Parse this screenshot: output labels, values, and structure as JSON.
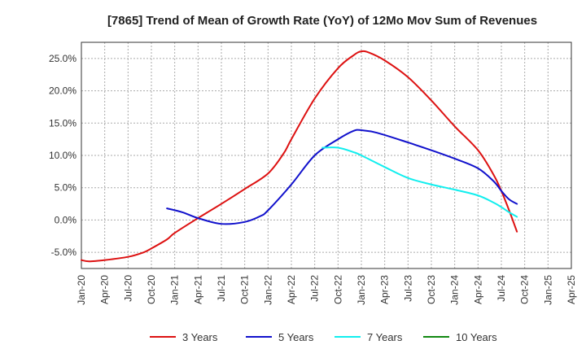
{
  "chart_data": {
    "type": "line",
    "title": "[7865]  Trend of Mean of Growth Rate (YoY) of 12Mo Mov Sum of Revenues",
    "xlabel": "",
    "ylabel": "",
    "x_start": 2020.0,
    "x_end": 2025.25,
    "ylim": [
      -7.5,
      27.5
    ],
    "yticks": [
      -5,
      0,
      5,
      10,
      15,
      20,
      25
    ],
    "ytick_labels": [
      "-5.0%",
      "0.0%",
      "5.0%",
      "10.0%",
      "15.0%",
      "20.0%",
      "25.0%"
    ],
    "xticks": [
      2020.0,
      2020.25,
      2020.5,
      2020.75,
      2021.0,
      2021.25,
      2021.5,
      2021.75,
      2022.0,
      2022.25,
      2022.5,
      2022.75,
      2023.0,
      2023.25,
      2023.5,
      2023.75,
      2024.0,
      2024.25,
      2024.5,
      2024.75,
      2025.0,
      2025.25
    ],
    "xtick_labels": [
      "Jan-20",
      "Apr-20",
      "Jul-20",
      "Oct-20",
      "Jan-21",
      "Apr-21",
      "Jul-21",
      "Oct-21",
      "Jan-22",
      "Apr-22",
      "Jul-22",
      "Oct-22",
      "Jan-23",
      "Apr-23",
      "Jul-23",
      "Oct-23",
      "Jan-24",
      "Apr-24",
      "Jul-24",
      "Oct-24",
      "Jan-25",
      "Apr-25"
    ],
    "grid": true,
    "legend_position": "bottom",
    "series": [
      {
        "name": "3 Years",
        "color": "#dd1111",
        "points": [
          [
            2020.0,
            -6.2
          ],
          [
            2020.083,
            -6.4
          ],
          [
            2020.25,
            -6.2
          ],
          [
            2020.5,
            -5.7
          ],
          [
            2020.667,
            -5.0
          ],
          [
            2020.75,
            -4.4
          ],
          [
            2020.917,
            -3.0
          ],
          [
            2021.0,
            -2.0
          ],
          [
            2021.25,
            0.3
          ],
          [
            2021.5,
            2.5
          ],
          [
            2021.75,
            4.8
          ],
          [
            2022.0,
            7.2
          ],
          [
            2022.167,
            10.3
          ],
          [
            2022.25,
            12.5
          ],
          [
            2022.5,
            18.8
          ],
          [
            2022.75,
            23.5
          ],
          [
            2022.917,
            25.5
          ],
          [
            2023.0,
            26.1
          ],
          [
            2023.083,
            25.9
          ],
          [
            2023.25,
            24.7
          ],
          [
            2023.5,
            22.1
          ],
          [
            2023.75,
            18.5
          ],
          [
            2024.0,
            14.5
          ],
          [
            2024.25,
            10.8
          ],
          [
            2024.417,
            7.0
          ],
          [
            2024.5,
            4.5
          ],
          [
            2024.583,
            1.5
          ],
          [
            2024.667,
            -1.8
          ]
        ]
      },
      {
        "name": "5 Years",
        "color": "#1111cc",
        "points": [
          [
            2020.917,
            1.8
          ],
          [
            2021.083,
            1.2
          ],
          [
            2021.25,
            0.3
          ],
          [
            2021.5,
            -0.6
          ],
          [
            2021.75,
            -0.3
          ],
          [
            2021.917,
            0.6
          ],
          [
            2022.0,
            1.5
          ],
          [
            2022.25,
            5.5
          ],
          [
            2022.5,
            10.0
          ],
          [
            2022.75,
            12.5
          ],
          [
            2022.917,
            13.8
          ],
          [
            2023.0,
            13.9
          ],
          [
            2023.167,
            13.5
          ],
          [
            2023.5,
            12.0
          ],
          [
            2023.75,
            10.8
          ],
          [
            2024.0,
            9.5
          ],
          [
            2024.25,
            8.0
          ],
          [
            2024.417,
            6.0
          ],
          [
            2024.5,
            4.5
          ],
          [
            2024.583,
            3.2
          ],
          [
            2024.667,
            2.5
          ]
        ]
      },
      {
        "name": "7 Years",
        "color": "#11eeee",
        "points": [
          [
            2022.583,
            11.2
          ],
          [
            2022.75,
            11.2
          ],
          [
            2022.917,
            10.5
          ],
          [
            2023.0,
            10.0
          ],
          [
            2023.25,
            8.2
          ],
          [
            2023.5,
            6.5
          ],
          [
            2023.75,
            5.5
          ],
          [
            2024.0,
            4.7
          ],
          [
            2024.25,
            3.8
          ],
          [
            2024.417,
            2.7
          ],
          [
            2024.5,
            2.0
          ],
          [
            2024.583,
            1.2
          ],
          [
            2024.667,
            0.5
          ]
        ]
      },
      {
        "name": "10 Years",
        "color": "#118811",
        "points": []
      }
    ]
  }
}
